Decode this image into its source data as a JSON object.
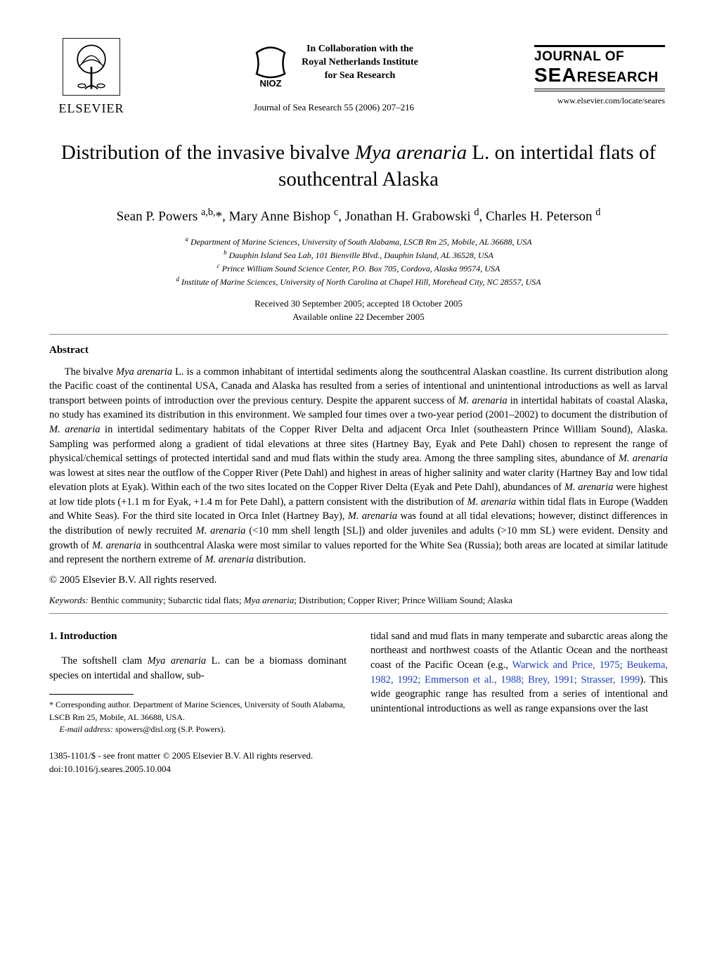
{
  "header": {
    "publisher": "ELSEVIER",
    "collab_lines": [
      "In Collaboration with the",
      "Royal Netherlands Institute",
      "for Sea Research"
    ],
    "journal_citation": "Journal of Sea Research 55 (2006) 207–216",
    "journal_logo_line1": "JOURNAL OF",
    "journal_logo_sea": "SEA",
    "journal_logo_research": "RESEARCH",
    "site_url": "www.elsevier.com/locate/seares"
  },
  "article": {
    "title_pre": "Distribution of the invasive bivalve ",
    "title_ital": "Mya arenaria",
    "title_post": " L. on intertidal flats of southcentral Alaska",
    "authors_html": "Sean P. Powers <sup>a,b,</sup>*, Mary Anne Bishop <sup>c</sup>, Jonathan H. Grabowski <sup>d</sup>, Charles H. Peterson <sup>d</sup>",
    "affiliations": [
      "a Department of Marine Sciences, University of South Alabama, LSCB Rm 25, Mobile, AL 36688, USA",
      "b Dauphin Island Sea Lab, 101 Bienville Blvd., Dauphin Island, AL 36528, USA",
      "c Prince William Sound Science Center, P.O. Box 705, Cordova, Alaska 99574, USA",
      "d Institute of Marine Sciences, University of North Carolina at Chapel Hill, Morehead City, NC 28557, USA"
    ],
    "received": "Received 30 September 2005; accepted 18 October 2005",
    "online": "Available online 22 December 2005"
  },
  "abstract": {
    "heading": "Abstract",
    "body_parts": [
      {
        "t": "plain",
        "v": "The bivalve "
      },
      {
        "t": "ital",
        "v": "Mya arenaria"
      },
      {
        "t": "plain",
        "v": " L. is a common inhabitant of intertidal sediments along the southcentral Alaskan coastline. Its current distribution along the Pacific coast of the continental USA, Canada and Alaska has resulted from a series of intentional and unintentional introductions as well as larval transport between points of introduction over the previous century. Despite the apparent success of "
      },
      {
        "t": "ital",
        "v": "M. arenaria"
      },
      {
        "t": "plain",
        "v": " in intertidal habitats of coastal Alaska, no study has examined its distribution in this environment. We sampled four times over a two-year period (2001–2002) to document the distribution of "
      },
      {
        "t": "ital",
        "v": "M. arenaria"
      },
      {
        "t": "plain",
        "v": " in intertidal sedimentary habitats of the Copper River Delta and adjacent Orca Inlet (southeastern Prince William Sound), Alaska. Sampling was performed along a gradient of tidal elevations at three sites (Hartney Bay, Eyak and Pete Dahl) chosen to represent the range of physical/chemical settings of protected intertidal sand and mud flats within the study area. Among the three sampling sites, abundance of "
      },
      {
        "t": "ital",
        "v": "M. arenaria"
      },
      {
        "t": "plain",
        "v": " was lowest at sites near the outflow of the Copper River (Pete Dahl) and highest in areas of higher salinity and water clarity (Hartney Bay and low tidal elevation plots at Eyak). Within each of the two sites located on the Copper River Delta (Eyak and Pete Dahl), abundances of "
      },
      {
        "t": "ital",
        "v": "M. arenaria"
      },
      {
        "t": "plain",
        "v": " were highest at low tide plots (+1.1 m for Eyak, +1.4 m for Pete Dahl), a pattern consistent with the distribution of "
      },
      {
        "t": "ital",
        "v": "M. arenaria"
      },
      {
        "t": "plain",
        "v": " within tidal flats in Europe (Wadden and White Seas). For the third site located in Orca Inlet (Hartney Bay), "
      },
      {
        "t": "ital",
        "v": "M. arenaria"
      },
      {
        "t": "plain",
        "v": " was found at all tidal elevations; however, distinct differences in the distribution of newly recruited "
      },
      {
        "t": "ital",
        "v": "M. arenaria"
      },
      {
        "t": "plain",
        "v": " (<10 mm shell length [SL]) and older juveniles and adults (>10 mm SL) were evident. Density and growth of "
      },
      {
        "t": "ital",
        "v": "M. arenaria"
      },
      {
        "t": "plain",
        "v": " in southcentral Alaska were most similar to values reported for the White Sea (Russia); both areas are located at similar latitude and represent the northern extreme of "
      },
      {
        "t": "ital",
        "v": "M. arenaria"
      },
      {
        "t": "plain",
        "v": " distribution."
      }
    ],
    "copyright": "© 2005 Elsevier B.V. All rights reserved.",
    "keywords_label": "Keywords:",
    "keywords_value": " Benthic community; Subarctic tidal flats; Mya arenaria; Distribution; Copper River; Prince William Sound; Alaska"
  },
  "intro": {
    "heading": "1. Introduction",
    "left_parts": [
      {
        "t": "plain",
        "v": "The softshell clam "
      },
      {
        "t": "ital",
        "v": "Mya arenaria"
      },
      {
        "t": "plain",
        "v": " L. can be a biomass dominant species on intertidal and shallow, sub-"
      }
    ],
    "right_parts": [
      {
        "t": "plain",
        "v": "tidal sand and mud flats in many temperate and subarctic areas along the northeast and northwest coasts of the Atlantic Ocean and the northeast coast of the Pacific Ocean (e.g., "
      },
      {
        "t": "link",
        "v": "Warwick and Price, 1975; Beukema, 1982, 1992; Emmerson et al., 1988; Brey, 1991; Strasser, 1999"
      },
      {
        "t": "plain",
        "v": "). This wide geographic range has resulted from a series of intentional and unintentional introductions as well as range expansions over the last"
      }
    ]
  },
  "footnote": {
    "corr": "* Corresponding author. Department of Marine Sciences, University of South Alabama, LSCB Rm 25, Mobile, AL 36688, USA.",
    "email_label": "E-mail address:",
    "email_value": " spowers@disl.org (S.P. Powers)."
  },
  "footer": {
    "front_matter": "1385-1101/$ - see front matter © 2005 Elsevier B.V. All rights reserved.",
    "doi": "doi:10.1016/j.seares.2005.10.004"
  },
  "colors": {
    "text": "#000000",
    "link": "#1a3fcf",
    "rule": "#888888",
    "elsevier_orange": "#e98b2a"
  }
}
